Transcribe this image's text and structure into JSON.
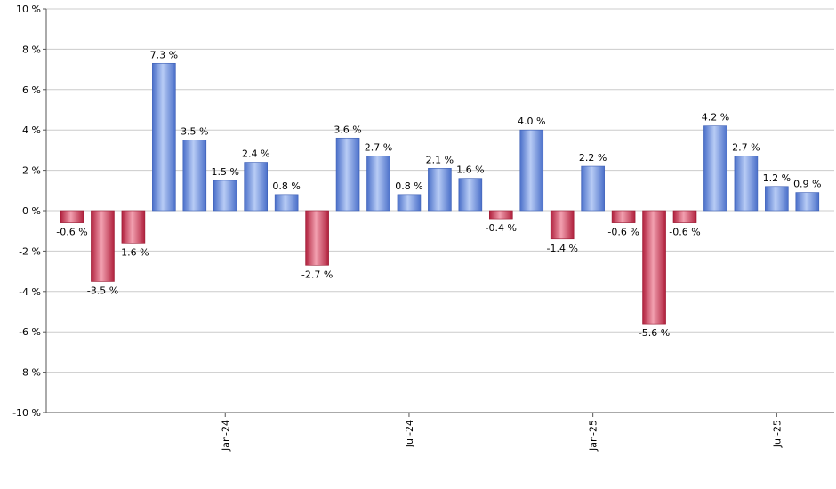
{
  "chart_data": {
    "type": "bar",
    "title": "",
    "xlabel": "",
    "ylabel": "",
    "ylim": [
      -10,
      10
    ],
    "y_ticks": [
      -10,
      -8,
      -6,
      -4,
      -2,
      0,
      2,
      4,
      6,
      8,
      10
    ],
    "y_tick_suffix": " %",
    "grid": true,
    "x_tick_labels": [
      {
        "label": "Jan-24",
        "index": 5
      },
      {
        "label": "Jul-24",
        "index": 11
      },
      {
        "label": "Jan-25",
        "index": 17
      },
      {
        "label": "Jul-25",
        "index": 23
      }
    ],
    "values": [
      -0.6,
      -3.5,
      -1.6,
      7.3,
      3.5,
      1.5,
      2.4,
      0.8,
      -2.7,
      3.6,
      2.7,
      0.8,
      2.1,
      1.6,
      -0.4,
      4.0,
      -1.4,
      2.2,
      -0.6,
      -5.6,
      -0.6,
      4.2,
      2.7,
      1.2,
      0.9
    ],
    "data_labels": [
      "-0.6 %",
      "-3.5 %",
      "-1.6 %",
      "7.3 %",
      "3.5 %",
      "1.5 %",
      "2.4 %",
      "0.8 %",
      "-2.7 %",
      "3.6 %",
      "2.7 %",
      "0.8 %",
      "2.1 %",
      "1.6 %",
      "-0.4 %",
      "4.0 %",
      "-1.4 %",
      "2.2 %",
      "-0.6 %",
      "-5.6 %",
      "-0.6 %",
      "4.2 %",
      "2.7 %",
      "1.2 %",
      "0.9 %"
    ],
    "colors": {
      "positive_light": "#b8ccf5",
      "positive_dark": "#4a6fc9",
      "negative_light": "#f2a0b0",
      "negative_dark": "#b0203c",
      "grid": "#cccccc",
      "axis": "#555555"
    }
  }
}
